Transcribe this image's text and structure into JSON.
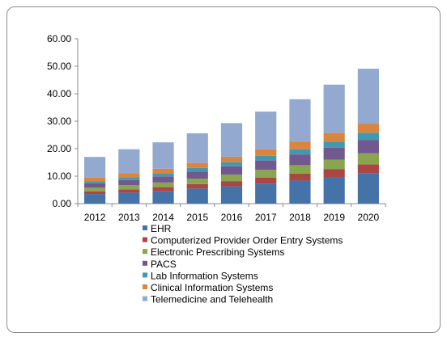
{
  "chart_data": {
    "type": "bar",
    "stacked": true,
    "title": "",
    "xlabel": "",
    "ylabel": "",
    "ylim": [
      0,
      60
    ],
    "y_ticks": [
      "0.00",
      "10.00",
      "20.00",
      "30.00",
      "40.00",
      "50.00",
      "60.00"
    ],
    "grid": false,
    "legend_position": "bottom",
    "categories": [
      "2012",
      "2013",
      "2014",
      "2015",
      "2016",
      "2017",
      "2018",
      "2019",
      "2020"
    ],
    "series": [
      {
        "name": "EHR",
        "color": "#4572A7",
        "values": [
          3.5,
          4.0,
          4.5,
          5.5,
          6.3,
          7.3,
          8.4,
          9.7,
          11.1
        ]
      },
      {
        "name": "Computerized Provider Order Entry Systems",
        "color": "#AA4643",
        "values": [
          1.0,
          1.2,
          1.5,
          1.6,
          1.9,
          2.2,
          2.5,
          2.8,
          3.2
        ]
      },
      {
        "name": "Electronic Prescribing Systems",
        "color": "#89A54E",
        "values": [
          1.3,
          1.5,
          1.7,
          2.0,
          2.4,
          2.8,
          3.1,
          3.5,
          4.0
        ]
      },
      {
        "name": "PACS",
        "color": "#71588F",
        "values": [
          1.6,
          1.9,
          2.2,
          2.6,
          3.0,
          3.4,
          3.9,
          4.4,
          4.9
        ]
      },
      {
        "name": "Lab Information Systems",
        "color": "#4198AF",
        "values": [
          0.8,
          1.0,
          1.1,
          1.3,
          1.5,
          1.7,
          1.9,
          2.2,
          2.6
        ]
      },
      {
        "name": "Clinical Information Systems",
        "color": "#DB843D",
        "values": [
          1.3,
          1.5,
          1.7,
          1.8,
          2.0,
          2.4,
          2.8,
          3.1,
          3.3
        ]
      },
      {
        "name": "Telemedicine and Telehealth",
        "color": "#93A9CF",
        "values": [
          7.5,
          8.7,
          9.6,
          10.8,
          12.2,
          13.7,
          15.4,
          17.6,
          20.0
        ]
      }
    ]
  }
}
